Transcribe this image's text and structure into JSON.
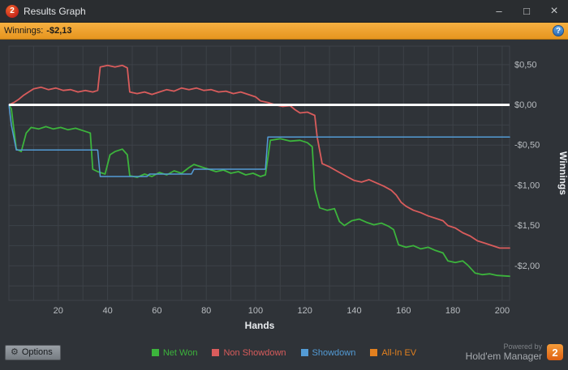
{
  "window": {
    "title": "Results Graph",
    "logo_text": "2",
    "controls": {
      "minimize": "–",
      "maximize": "□",
      "close": "×"
    }
  },
  "banner": {
    "label": "Winnings:",
    "value": "-$2,13",
    "help_icon": "?"
  },
  "chart_data": {
    "type": "line",
    "xlabel": "Hands",
    "ylabel": "Winnings",
    "xlim": [
      0,
      203
    ],
    "ylim": [
      -2.43,
      0.73
    ],
    "xticks": [
      20,
      40,
      60,
      80,
      100,
      120,
      140,
      160,
      180,
      200
    ],
    "yticks": [
      {
        "value": 0.5,
        "label": "$0,50"
      },
      {
        "value": 0.0,
        "label": "$0,00"
      },
      {
        "value": -0.5,
        "label": "-$0,50"
      },
      {
        "value": -1.0,
        "label": "-$1,00"
      },
      {
        "value": -1.5,
        "label": "-$1,50"
      },
      {
        "value": -2.0,
        "label": "-$2,00"
      }
    ],
    "grid": {
      "x_step": 10,
      "y_step": 0.25,
      "on": true
    },
    "zero_line": 0,
    "colors": {
      "grid": "#3d4248",
      "zero_line": "#ffffff",
      "tick_text": "#b9bdc1",
      "axis_text": "#e9ecef",
      "background": "#2f3338"
    },
    "series": [
      {
        "name": "Net Won",
        "color": "#3cb43c",
        "width": 1.8,
        "x": [
          0,
          1,
          3,
          5,
          7,
          9,
          12,
          15,
          18,
          21,
          24,
          27,
          30,
          33,
          34,
          36,
          39,
          41,
          43,
          46,
          48,
          49,
          52,
          55,
          58,
          61,
          64,
          67,
          70,
          73,
          75,
          78,
          81,
          84,
          87,
          90,
          93,
          96,
          99,
          102,
          104,
          106,
          110,
          114,
          118,
          121,
          123,
          124,
          126,
          129,
          132,
          134,
          136,
          139,
          142,
          145,
          148,
          151,
          154,
          156,
          158,
          161,
          164,
          167,
          170,
          173,
          176,
          178,
          181,
          184,
          186,
          189,
          192,
          195,
          198,
          203
        ],
        "y": [
          0,
          -0.05,
          -0.55,
          -0.58,
          -0.35,
          -0.28,
          -0.3,
          -0.27,
          -0.3,
          -0.28,
          -0.31,
          -0.29,
          -0.32,
          -0.35,
          -0.8,
          -0.83,
          -0.86,
          -0.62,
          -0.58,
          -0.55,
          -0.62,
          -0.88,
          -0.9,
          -0.86,
          -0.89,
          -0.84,
          -0.87,
          -0.82,
          -0.85,
          -0.78,
          -0.74,
          -0.77,
          -0.8,
          -0.83,
          -0.81,
          -0.85,
          -0.83,
          -0.87,
          -0.85,
          -0.89,
          -0.87,
          -0.44,
          -0.42,
          -0.45,
          -0.44,
          -0.47,
          -0.52,
          -1.05,
          -1.28,
          -1.31,
          -1.29,
          -1.45,
          -1.5,
          -1.44,
          -1.42,
          -1.46,
          -1.49,
          -1.47,
          -1.51,
          -1.55,
          -1.74,
          -1.77,
          -1.75,
          -1.79,
          -1.77,
          -1.81,
          -1.84,
          -1.94,
          -1.96,
          -1.94,
          -1.99,
          -2.09,
          -2.11,
          -2.1,
          -2.12,
          -2.13
        ]
      },
      {
        "name": "Non Showdown",
        "color": "#d95c5c",
        "width": 1.8,
        "x": [
          0,
          2,
          4,
          6,
          8,
          10,
          13,
          16,
          19,
          22,
          25,
          28,
          31,
          34,
          36,
          37,
          40,
          43,
          46,
          48,
          49,
          52,
          55,
          58,
          61,
          64,
          67,
          70,
          73,
          76,
          79,
          82,
          85,
          88,
          91,
          94,
          97,
          100,
          102,
          105,
          108,
          111,
          114,
          116,
          118,
          121,
          124,
          125,
          127,
          130,
          134,
          137,
          140,
          143,
          146,
          149,
          152,
          155,
          157,
          159,
          161,
          164,
          167,
          170,
          173,
          176,
          178,
          181,
          184,
          187,
          190,
          193,
          196,
          199,
          203
        ],
        "y": [
          0,
          0.03,
          0.07,
          0.12,
          0.16,
          0.2,
          0.22,
          0.19,
          0.21,
          0.18,
          0.19,
          0.16,
          0.18,
          0.16,
          0.18,
          0.47,
          0.49,
          0.47,
          0.49,
          0.46,
          0.16,
          0.14,
          0.16,
          0.13,
          0.16,
          0.19,
          0.17,
          0.21,
          0.19,
          0.21,
          0.18,
          0.19,
          0.16,
          0.17,
          0.14,
          0.16,
          0.13,
          0.1,
          0.05,
          0.03,
          0,
          -0.02,
          -0.01,
          -0.06,
          -0.1,
          -0.09,
          -0.13,
          -0.4,
          -0.73,
          -0.77,
          -0.84,
          -0.89,
          -0.94,
          -0.96,
          -0.93,
          -0.97,
          -1.01,
          -1.06,
          -1.12,
          -1.21,
          -1.26,
          -1.31,
          -1.34,
          -1.38,
          -1.41,
          -1.44,
          -1.5,
          -1.53,
          -1.59,
          -1.63,
          -1.69,
          -1.72,
          -1.75,
          -1.78,
          -1.78
        ]
      },
      {
        "name": "Showdown",
        "color": "#539bd5",
        "width": 1.5,
        "x": [
          0,
          1,
          3,
          36,
          37,
          56,
          57,
          74,
          75,
          104,
          105,
          203
        ],
        "y": [
          0,
          -0.25,
          -0.56,
          -0.56,
          -0.89,
          -0.89,
          -0.86,
          -0.86,
          -0.8,
          -0.8,
          -0.4,
          -0.4
        ]
      }
    ],
    "legend": [
      {
        "label": "Net Won",
        "color": "#3cb43c"
      },
      {
        "label": "Non Showdown",
        "color": "#d95c5c"
      },
      {
        "label": "Showdown",
        "color": "#539bd5"
      },
      {
        "label": "All-In EV",
        "color": "#e2801f"
      }
    ]
  },
  "footer": {
    "options_icon": "⚙",
    "options_label": "Options",
    "powered_by": "Powered by",
    "brand": "Hold'em Manager",
    "brand_logo": "2"
  }
}
